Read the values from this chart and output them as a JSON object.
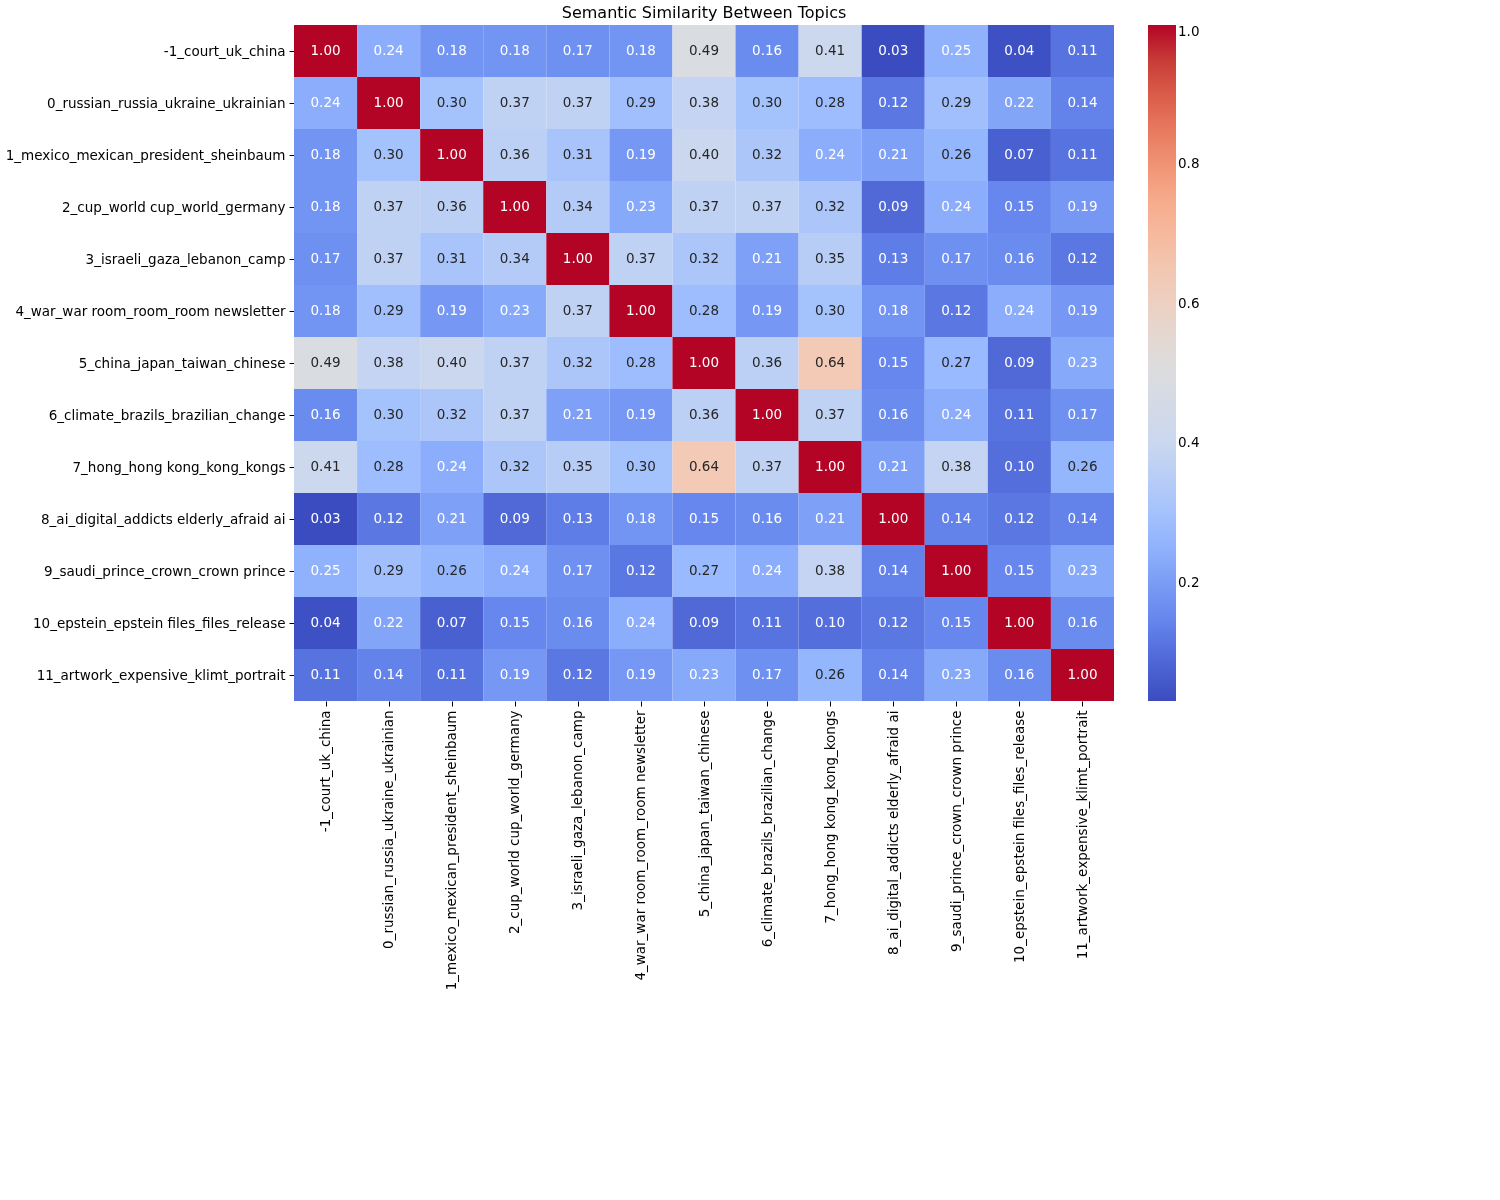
{
  "chart_data": {
    "type": "heatmap",
    "title": "Semantic Similarity Between Topics",
    "categories": [
      "-1_court_uk_china",
      "0_russian_russia_ukraine_ukrainian",
      "1_mexico_mexican_president_sheinbaum",
      "2_cup_world cup_world_germany",
      "3_israeli_gaza_lebanon_camp",
      "4_war_war room_room_room newsletter",
      "5_china_japan_taiwan_chinese",
      "6_climate_brazils_brazilian_change",
      "7_hong_hong kong_kong_kongs",
      "8_ai_digital_addicts elderly_afraid ai",
      "9_saudi_prince_crown_crown prince",
      "10_epstein_epstein files_files_release",
      "11_artwork_expensive_klimt_portrait"
    ],
    "y_categories": [
      "-1_court_uk_china",
      "0_russian_russia_ukraine_ukrainian",
      "1_mexico_mexican_president_sheinbaum",
      "2_cup_world cup_world_germany",
      "3_israeli_gaza_lebanon_camp",
      "4_war_war room_room_room newsletter",
      "5_china_japan_taiwan_chinese",
      "6_climate_brazils_brazilian_change",
      "7_hong_hong kong_kong_kongs",
      "8_ai_digital_addicts elderly_afraid ai",
      "9_saudi_prince_crown_crown prince",
      "10_epstein_epstein files_files_release",
      "11_artwork_expensive_klimt_portrait"
    ],
    "cells": [
      [
        1.0,
        0.24,
        0.18,
        0.18,
        0.17,
        0.18,
        0.49,
        0.16,
        0.41,
        0.03,
        0.25,
        0.04,
        0.11
      ],
      [
        0.24,
        1.0,
        0.3,
        0.37,
        0.37,
        0.29,
        0.38,
        0.3,
        0.28,
        0.12,
        0.29,
        0.22,
        0.14
      ],
      [
        0.18,
        0.3,
        1.0,
        0.36,
        0.31,
        0.19,
        0.4,
        0.32,
        0.24,
        0.21,
        0.26,
        0.07,
        0.11
      ],
      [
        0.18,
        0.37,
        0.36,
        1.0,
        0.34,
        0.23,
        0.37,
        0.37,
        0.32,
        0.09,
        0.24,
        0.15,
        0.19
      ],
      [
        0.17,
        0.37,
        0.31,
        0.34,
        1.0,
        0.37,
        0.32,
        0.21,
        0.35,
        0.13,
        0.17,
        0.16,
        0.12
      ],
      [
        0.18,
        0.29,
        0.19,
        0.23,
        0.37,
        1.0,
        0.28,
        0.19,
        0.3,
        0.18,
        0.12,
        0.24,
        0.19
      ],
      [
        0.49,
        0.38,
        0.4,
        0.37,
        0.32,
        0.28,
        1.0,
        0.36,
        0.64,
        0.15,
        0.27,
        0.09,
        0.23
      ],
      [
        0.16,
        0.3,
        0.32,
        0.37,
        0.21,
        0.19,
        0.36,
        1.0,
        0.37,
        0.16,
        0.24,
        0.11,
        0.17
      ],
      [
        0.41,
        0.28,
        0.24,
        0.32,
        0.35,
        0.3,
        0.64,
        0.37,
        1.0,
        0.21,
        0.38,
        0.1,
        0.26
      ],
      [
        0.03,
        0.12,
        0.21,
        0.09,
        0.13,
        0.18,
        0.15,
        0.16,
        0.21,
        1.0,
        0.14,
        0.12,
        0.14
      ],
      [
        0.25,
        0.29,
        0.26,
        0.24,
        0.17,
        0.12,
        0.27,
        0.24,
        0.38,
        0.14,
        1.0,
        0.15,
        0.23
      ],
      [
        0.04,
        0.22,
        0.07,
        0.15,
        0.16,
        0.24,
        0.09,
        0.11,
        0.1,
        0.12,
        0.15,
        1.0,
        0.16
      ],
      [
        0.11,
        0.14,
        0.11,
        0.19,
        0.12,
        0.19,
        0.23,
        0.17,
        0.26,
        0.14,
        0.23,
        0.16,
        1.0
      ]
    ],
    "cell_labels": [
      [
        "1.00",
        "0.24",
        "0.18",
        "0.18",
        "0.17",
        "0.18",
        "0.49",
        "0.16",
        "0.41",
        "0.03",
        "0.25",
        "0.04",
        "0.11"
      ],
      [
        "0.24",
        "1.00",
        "0.30",
        "0.37",
        "0.37",
        "0.29",
        "0.38",
        "0.30",
        "0.28",
        "0.12",
        "0.29",
        "0.22",
        "0.14"
      ],
      [
        "0.18",
        "0.30",
        "1.00",
        "0.36",
        "0.31",
        "0.19",
        "0.40",
        "0.32",
        "0.24",
        "0.21",
        "0.26",
        "0.07",
        "0.11"
      ],
      [
        "0.18",
        "0.37",
        "0.36",
        "1.00",
        "0.34",
        "0.23",
        "0.37",
        "0.37",
        "0.32",
        "0.09",
        "0.24",
        "0.15",
        "0.19"
      ],
      [
        "0.17",
        "0.37",
        "0.31",
        "0.34",
        "1.00",
        "0.37",
        "0.32",
        "0.21",
        "0.35",
        "0.13",
        "0.17",
        "0.16",
        "0.12"
      ],
      [
        "0.18",
        "0.29",
        "0.19",
        "0.23",
        "0.37",
        "1.00",
        "0.28",
        "0.19",
        "0.30",
        "0.18",
        "0.12",
        "0.24",
        "0.19"
      ],
      [
        "0.49",
        "0.38",
        "0.40",
        "0.37",
        "0.32",
        "0.28",
        "1.00",
        "0.36",
        "0.64",
        "0.15",
        "0.27",
        "0.09",
        "0.23"
      ],
      [
        "0.16",
        "0.30",
        "0.32",
        "0.37",
        "0.21",
        "0.19",
        "0.36",
        "1.00",
        "0.37",
        "0.16",
        "0.24",
        "0.11",
        "0.17"
      ],
      [
        "0.41",
        "0.28",
        "0.24",
        "0.32",
        "0.35",
        "0.30",
        "0.64",
        "0.37",
        "1.00",
        "0.21",
        "0.38",
        "0.10",
        "0.26"
      ],
      [
        "0.03",
        "0.12",
        "0.21",
        "0.09",
        "0.13",
        "0.18",
        "0.15",
        "0.16",
        "0.21",
        "1.00",
        "0.14",
        "0.12",
        "0.14"
      ],
      [
        "0.25",
        "0.29",
        "0.26",
        "0.24",
        "0.17",
        "0.12",
        "0.27",
        "0.24",
        "0.38",
        "0.14",
        "1.00",
        "0.15",
        "0.23"
      ],
      [
        "0.04",
        "0.22",
        "0.07",
        "0.15",
        "0.16",
        "0.24",
        "0.09",
        "0.11",
        "0.10",
        "0.12",
        "0.15",
        "1.00",
        "0.16"
      ],
      [
        "0.11",
        "0.14",
        "0.11",
        "0.19",
        "0.12",
        "0.19",
        "0.23",
        "0.17",
        "0.26",
        "0.14",
        "0.23",
        "0.16",
        "1.00"
      ]
    ],
    "clim": [
      0.03,
      1.0
    ],
    "cticks": [
      0.2,
      0.4,
      0.6,
      0.8,
      {
        "value": 1.0,
        "label": "1.0"
      }
    ],
    "data_labels": true
  }
}
